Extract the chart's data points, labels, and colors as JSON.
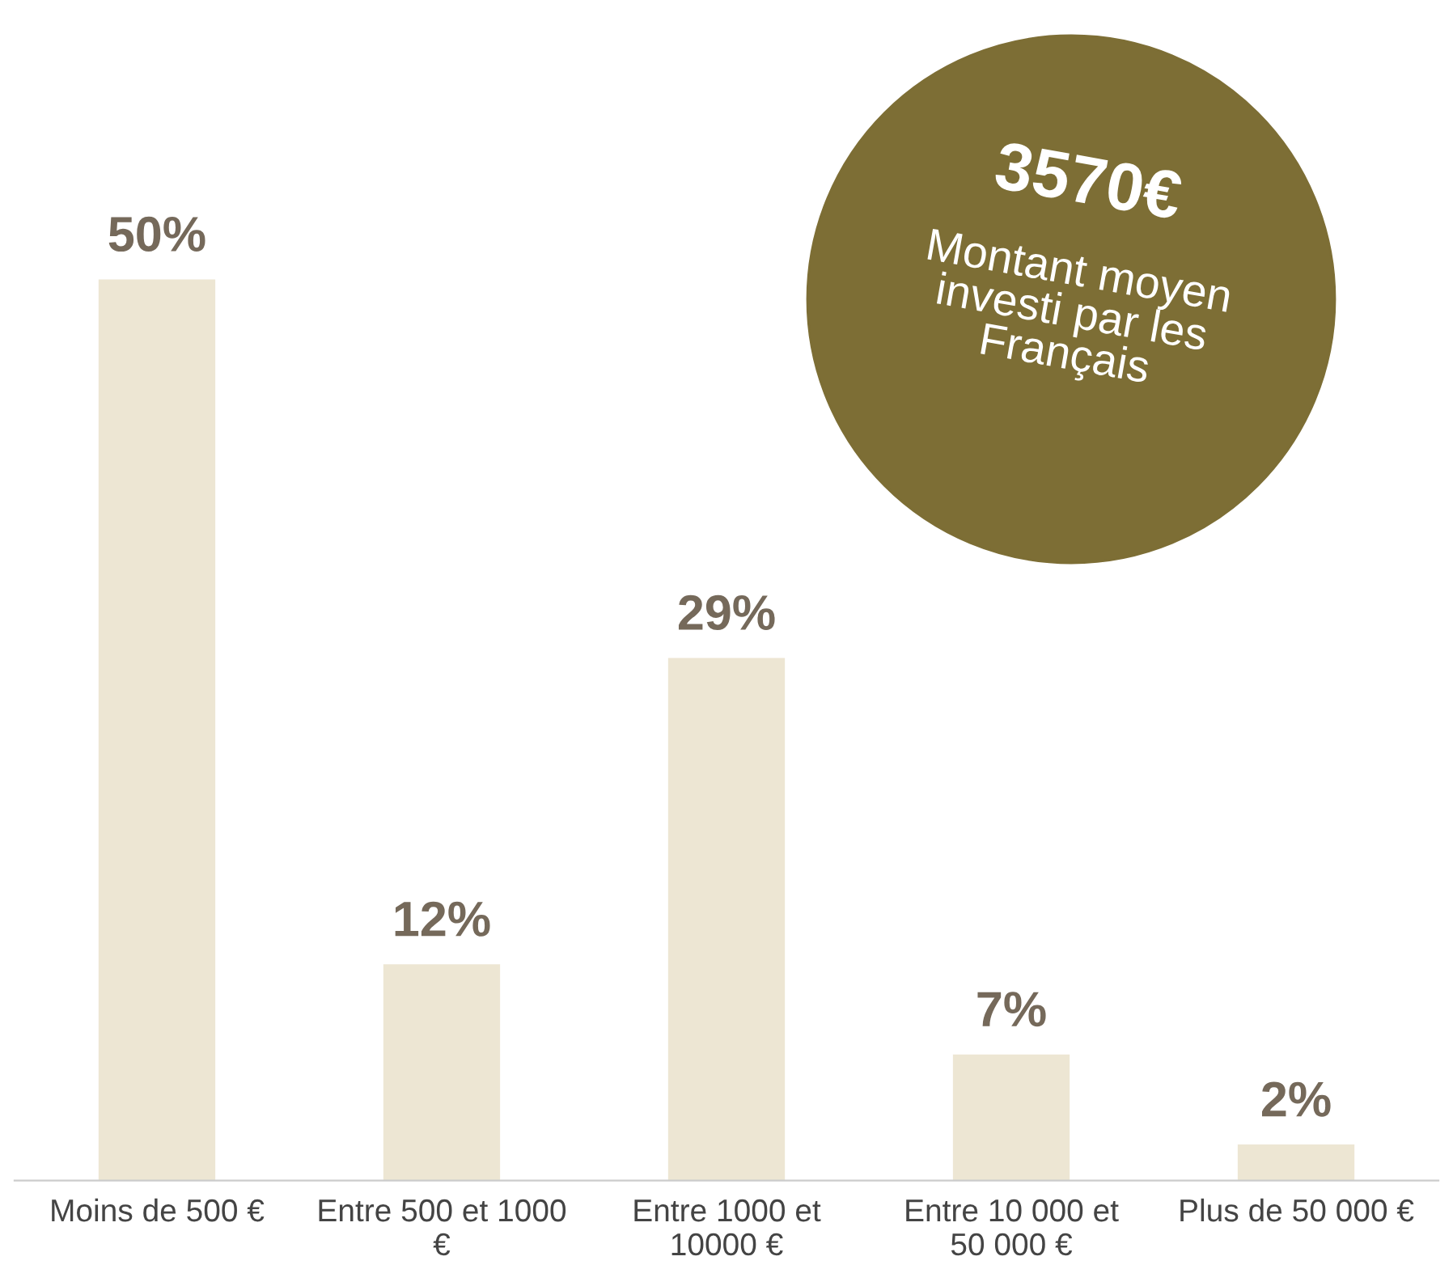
{
  "chart_data": {
    "type": "bar",
    "categories": [
      "Moins de 500 €",
      "Entre 500 et 1000\n€",
      "Entre 1000 et\n10000 €",
      "Entre 10 000 et\n50 000 €",
      "Plus de 50 000 €"
    ],
    "values": [
      50,
      12,
      29,
      7,
      2
    ],
    "value_labels": [
      "50%",
      "12%",
      "29%",
      "7%",
      "2%"
    ],
    "color": "#ede6d3",
    "annotations": [
      "3570€",
      "Montant moyen\ninvesti par les\nFrançais"
    ],
    "grid": false,
    "legend": false
  }
}
